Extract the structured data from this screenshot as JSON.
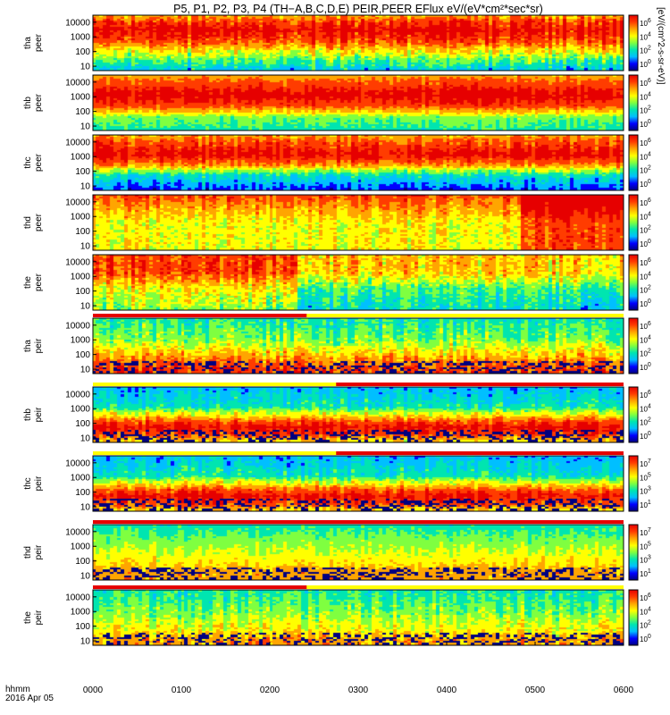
{
  "title": "P5, P1, P2, P3, P4 (TH-A,B,C,D,E) PEIR,PEER EFlux eV/(eV*cm^2*sec*sr)",
  "title_display": "P5, P1, P2, P3, P4 (TH−A,B,C,D,E) PEIR,PEER EFlux eV/(eV*cm²*sec*sr)",
  "units_label": "[eV/(cm^2-s-sr-eV)]",
  "time_axis": {
    "label": "hhmm",
    "date": "2016 Apr 05",
    "ticks": [
      "0000",
      "0100",
      "0200",
      "0300",
      "0400",
      "0500",
      "0600"
    ]
  },
  "colorbar_tick_labels": [
    "10^6",
    "10^4",
    "10^2"
  ],
  "colors": {
    "colormap": [
      "#000080",
      "#0000ff",
      "#00bfff",
      "#00e5b0",
      "#7fff40",
      "#ffff00",
      "#ffa500",
      "#ff3c00",
      "#e60000"
    ],
    "mode_bar_fast": "#e60000",
    "mode_bar_slow": "#ffff00"
  },
  "chart_data": {
    "type": "heatmap",
    "x_range_hhmm": [
      "0000",
      "0600"
    ],
    "y_scale": "log",
    "y_ticks": [
      10,
      100,
      1000,
      10000
    ],
    "panels": [
      {
        "probe": "tha",
        "instrument": "peer",
        "ylim": [
          5,
          30000
        ],
        "colorbar_ticks": [
          "10^6",
          "10^4",
          "10^2",
          "10^0"
        ],
        "mode_bar": false
      },
      {
        "probe": "thb",
        "instrument": "peer",
        "ylim": [
          5,
          30000
        ],
        "colorbar_ticks": [
          "10^6",
          "10^4",
          "10^2",
          "10^0"
        ],
        "mode_bar": false
      },
      {
        "probe": "thc",
        "instrument": "peer",
        "ylim": [
          5,
          30000
        ],
        "colorbar_ticks": [
          "10^6",
          "10^4",
          "10^2",
          "10^0"
        ],
        "mode_bar": false
      },
      {
        "probe": "thd",
        "instrument": "peer",
        "ylim": [
          5,
          30000
        ],
        "colorbar_ticks": [
          "10^6",
          "10^4",
          "10^2",
          "10^0"
        ],
        "mode_bar": false
      },
      {
        "probe": "the",
        "instrument": "peer",
        "ylim": [
          5,
          30000
        ],
        "colorbar_ticks": [
          "10^6",
          "10^4",
          "10^2",
          "10^0"
        ],
        "mode_bar": false
      },
      {
        "probe": "tha",
        "instrument": "peir",
        "ylim": [
          5,
          30000
        ],
        "colorbar_ticks": [
          "10^6",
          "10^4",
          "10^2",
          "10^0"
        ],
        "mode_bar": true,
        "fast_mode_until_hhmm": "0225"
      },
      {
        "probe": "thb",
        "instrument": "peir",
        "ylim": [
          5,
          30000
        ],
        "colorbar_ticks": [
          "10^6",
          "10^4",
          "10^2",
          "10^0"
        ],
        "mode_bar": true,
        "fast_mode_from_hhmm": "0245"
      },
      {
        "probe": "thc",
        "instrument": "peir",
        "ylim": [
          5,
          30000
        ],
        "colorbar_ticks": [
          "10^7",
          "10^5",
          "10^3",
          "10^1"
        ],
        "mode_bar": true,
        "fast_mode_from_hhmm": "0245"
      },
      {
        "probe": "thd",
        "instrument": "peir",
        "ylim": [
          5,
          30000
        ],
        "colorbar_ticks": [
          "10^7",
          "10^5",
          "10^3",
          "10^1"
        ],
        "mode_bar": true,
        "fast_mode_all": true
      },
      {
        "probe": "the",
        "instrument": "peir",
        "ylim": [
          5,
          30000
        ],
        "colorbar_ticks": [
          "10^6",
          "10^4",
          "10^2",
          "10^0"
        ],
        "mode_bar": true,
        "fast_mode_until_hhmm": "0225"
      }
    ]
  }
}
